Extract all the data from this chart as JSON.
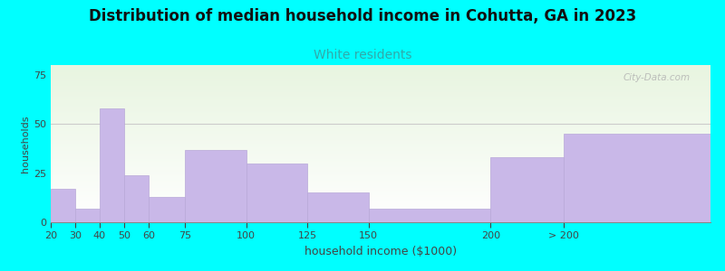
{
  "title": "Distribution of median household income in Cohutta, GA in 2023",
  "subtitle": "White residents",
  "xlabel": "household income ($1000)",
  "ylabel": "households",
  "background_color": "#00FFFF",
  "plot_bg_top": "#e8f5e0",
  "plot_bg_bottom": "#ffffff",
  "bar_color": "#c9b8e8",
  "bar_edge_color": "#b8a8d8",
  "title_fontsize": 12,
  "subtitle_fontsize": 10,
  "subtitle_color": "#30AAAA",
  "ylabel_fontsize": 8,
  "xlabel_fontsize": 9,
  "tick_fontsize": 8,
  "ylim": [
    0,
    80
  ],
  "yticks": [
    0,
    25,
    50,
    75
  ],
  "watermark_text": "City-Data.com",
  "bar_lefts": [
    20,
    30,
    40,
    50,
    60,
    75,
    100,
    125,
    150,
    200,
    230
  ],
  "bar_rights": [
    30,
    40,
    50,
    60,
    75,
    100,
    125,
    150,
    200,
    230,
    290
  ],
  "values": [
    17,
    7,
    58,
    24,
    13,
    37,
    30,
    15,
    7,
    33,
    45
  ],
  "xtick_positions": [
    20,
    30,
    40,
    50,
    60,
    75,
    100,
    125,
    150,
    200,
    230
  ],
  "xtick_labels": [
    "20",
    "30",
    "40",
    "50",
    "60",
    "75",
    "100",
    "125",
    "150",
    "200",
    "> 200"
  ]
}
